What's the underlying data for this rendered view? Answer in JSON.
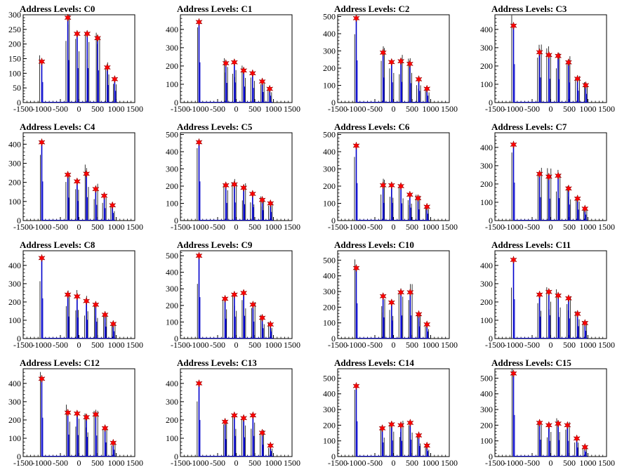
{
  "x_ticks": [
    -1500,
    -1000,
    -500,
    0,
    500,
    1000,
    1500
  ],
  "colors": {
    "hist_main": "#0000cc",
    "hist_secondary": "#000000",
    "marker": "#ff0000",
    "marker_edge": "#800000"
  },
  "chart_data": [
    {
      "type": "bar",
      "title": "Address Levels: C0",
      "xlim": [
        -1500,
        1500
      ],
      "ylim": [
        0,
        300
      ],
      "yticks": [
        0,
        50,
        100,
        150,
        200,
        250,
        300
      ],
      "peaks": [
        {
          "x": -1000,
          "y": 140
        },
        {
          "x": -300,
          "y": 290
        },
        {
          "x": -50,
          "y": 235
        },
        {
          "x": 220,
          "y": 235
        },
        {
          "x": 500,
          "y": 220
        },
        {
          "x": 760,
          "y": 120
        },
        {
          "x": 960,
          "y": 80
        }
      ]
    },
    {
      "type": "bar",
      "title": "Address Levels: C1",
      "xlim": [
        -1500,
        1500
      ],
      "ylim": [
        0,
        480
      ],
      "yticks": [
        0,
        100,
        200,
        300,
        400
      ],
      "peaks": [
        {
          "x": -1000,
          "y": 440
        },
        {
          "x": -280,
          "y": 215
        },
        {
          "x": -50,
          "y": 220
        },
        {
          "x": 200,
          "y": 175
        },
        {
          "x": 440,
          "y": 160
        },
        {
          "x": 700,
          "y": 115
        },
        {
          "x": 900,
          "y": 75
        }
      ]
    },
    {
      "type": "bar",
      "title": "Address Levels: C2",
      "xlim": [
        -1500,
        1500
      ],
      "ylim": [
        0,
        510
      ],
      "yticks": [
        0,
        100,
        200,
        300,
        400,
        500
      ],
      "peaks": [
        {
          "x": -1000,
          "y": 490
        },
        {
          "x": -280,
          "y": 290
        },
        {
          "x": -50,
          "y": 235
        },
        {
          "x": 200,
          "y": 240
        },
        {
          "x": 440,
          "y": 225
        },
        {
          "x": 680,
          "y": 135
        },
        {
          "x": 900,
          "y": 80
        }
      ]
    },
    {
      "type": "bar",
      "title": "Address Levels: C3",
      "xlim": [
        -1500,
        1500
      ],
      "ylim": [
        0,
        480
      ],
      "yticks": [
        0,
        100,
        200,
        300,
        400
      ],
      "peaks": [
        {
          "x": -1000,
          "y": 420
        },
        {
          "x": -300,
          "y": 275
        },
        {
          "x": -50,
          "y": 260
        },
        {
          "x": 200,
          "y": 255
        },
        {
          "x": 480,
          "y": 220
        },
        {
          "x": 720,
          "y": 130
        },
        {
          "x": 940,
          "y": 95
        }
      ]
    },
    {
      "type": "bar",
      "title": "Address Levels: C4",
      "xlim": [
        -1500,
        1500
      ],
      "ylim": [
        0,
        460
      ],
      "yticks": [
        0,
        100,
        200,
        300,
        400
      ],
      "peaks": [
        {
          "x": -1000,
          "y": 410
        },
        {
          "x": -300,
          "y": 240
        },
        {
          "x": -50,
          "y": 205
        },
        {
          "x": 200,
          "y": 245
        },
        {
          "x": 450,
          "y": 165
        },
        {
          "x": 680,
          "y": 130
        },
        {
          "x": 900,
          "y": 80
        }
      ]
    },
    {
      "type": "bar",
      "title": "Address Levels: C5",
      "xlim": [
        -1500,
        1500
      ],
      "ylim": [
        0,
        510
      ],
      "yticks": [
        0,
        100,
        200,
        300,
        400,
        500
      ],
      "peaks": [
        {
          "x": -1000,
          "y": 455
        },
        {
          "x": -280,
          "y": 205
        },
        {
          "x": -50,
          "y": 210
        },
        {
          "x": 200,
          "y": 190
        },
        {
          "x": 440,
          "y": 155
        },
        {
          "x": 700,
          "y": 120
        },
        {
          "x": 920,
          "y": 100
        }
      ]
    },
    {
      "type": "bar",
      "title": "Address Levels: C6",
      "xlim": [
        -1500,
        1500
      ],
      "ylim": [
        0,
        510
      ],
      "yticks": [
        0,
        100,
        200,
        300,
        400,
        500
      ],
      "peaks": [
        {
          "x": -1000,
          "y": 435
        },
        {
          "x": -280,
          "y": 205
        },
        {
          "x": -50,
          "y": 205
        },
        {
          "x": 200,
          "y": 200
        },
        {
          "x": 440,
          "y": 150
        },
        {
          "x": 660,
          "y": 130
        },
        {
          "x": 900,
          "y": 80
        }
      ]
    },
    {
      "type": "bar",
      "title": "Address Levels: C7",
      "xlim": [
        -1500,
        1500
      ],
      "ylim": [
        0,
        480
      ],
      "yticks": [
        0,
        100,
        200,
        300,
        400
      ],
      "peaks": [
        {
          "x": -1000,
          "y": 415
        },
        {
          "x": -300,
          "y": 255
        },
        {
          "x": -50,
          "y": 240
        },
        {
          "x": 200,
          "y": 245
        },
        {
          "x": 480,
          "y": 175
        },
        {
          "x": 720,
          "y": 120
        },
        {
          "x": 920,
          "y": 65
        }
      ]
    },
    {
      "type": "bar",
      "title": "Address Levels: C8",
      "xlim": [
        -1500,
        1500
      ],
      "ylim": [
        0,
        480
      ],
      "yticks": [
        0,
        100,
        200,
        300,
        400
      ],
      "peaks": [
        {
          "x": -1000,
          "y": 440
        },
        {
          "x": -300,
          "y": 240
        },
        {
          "x": -50,
          "y": 230
        },
        {
          "x": 200,
          "y": 205
        },
        {
          "x": 450,
          "y": 185
        },
        {
          "x": 700,
          "y": 130
        },
        {
          "x": 920,
          "y": 80
        }
      ]
    },
    {
      "type": "bar",
      "title": "Address Levels: C9",
      "xlim": [
        -1500,
        1500
      ],
      "ylim": [
        0,
        530
      ],
      "yticks": [
        0,
        100,
        200,
        300,
        400,
        500
      ],
      "peaks": [
        {
          "x": -1000,
          "y": 500
        },
        {
          "x": -300,
          "y": 240
        },
        {
          "x": -50,
          "y": 265
        },
        {
          "x": 200,
          "y": 275
        },
        {
          "x": 450,
          "y": 205
        },
        {
          "x": 700,
          "y": 125
        },
        {
          "x": 920,
          "y": 85
        }
      ]
    },
    {
      "type": "bar",
      "title": "Address Levels: C10",
      "xlim": [
        -1500,
        1500
      ],
      "ylim": [
        0,
        560
      ],
      "yticks": [
        0,
        100,
        200,
        300,
        400,
        500
      ],
      "peaks": [
        {
          "x": -1000,
          "y": 450
        },
        {
          "x": -280,
          "y": 270
        },
        {
          "x": -50,
          "y": 230
        },
        {
          "x": 200,
          "y": 295
        },
        {
          "x": 450,
          "y": 295
        },
        {
          "x": 680,
          "y": 155
        },
        {
          "x": 900,
          "y": 90
        }
      ]
    },
    {
      "type": "bar",
      "title": "Address Levels: C11",
      "xlim": [
        -1500,
        1500
      ],
      "ylim": [
        0,
        480
      ],
      "yticks": [
        0,
        100,
        200,
        300,
        400
      ],
      "peaks": [
        {
          "x": -1000,
          "y": 430
        },
        {
          "x": -300,
          "y": 240
        },
        {
          "x": -50,
          "y": 255
        },
        {
          "x": 200,
          "y": 235
        },
        {
          "x": 480,
          "y": 220
        },
        {
          "x": 720,
          "y": 135
        },
        {
          "x": 920,
          "y": 85
        }
      ]
    },
    {
      "type": "bar",
      "title": "Address Levels: C12",
      "xlim": [
        -1500,
        1500
      ],
      "ylim": [
        0,
        480
      ],
      "yticks": [
        0,
        100,
        200,
        300,
        400
      ],
      "peaks": [
        {
          "x": -1000,
          "y": 425
        },
        {
          "x": -300,
          "y": 240
        },
        {
          "x": -50,
          "y": 235
        },
        {
          "x": 200,
          "y": 215
        },
        {
          "x": 450,
          "y": 230
        },
        {
          "x": 700,
          "y": 155
        },
        {
          "x": 920,
          "y": 75
        }
      ]
    },
    {
      "type": "bar",
      "title": "Address Levels: C13",
      "xlim": [
        -1500,
        1500
      ],
      "ylim": [
        0,
        480
      ],
      "yticks": [
        0,
        100,
        200,
        300,
        400
      ],
      "peaks": [
        {
          "x": -1000,
          "y": 400
        },
        {
          "x": -300,
          "y": 190
        },
        {
          "x": -50,
          "y": 225
        },
        {
          "x": 200,
          "y": 210
        },
        {
          "x": 450,
          "y": 225
        },
        {
          "x": 700,
          "y": 130
        },
        {
          "x": 920,
          "y": 60
        }
      ]
    },
    {
      "type": "bar",
      "title": "Address Levels: C14",
      "xlim": [
        -1500,
        1500
      ],
      "ylim": [
        0,
        560
      ],
      "yticks": [
        0,
        100,
        200,
        300,
        400,
        500
      ],
      "peaks": [
        {
          "x": -1000,
          "y": 450
        },
        {
          "x": -300,
          "y": 180
        },
        {
          "x": -50,
          "y": 205
        },
        {
          "x": 200,
          "y": 200
        },
        {
          "x": 450,
          "y": 215
        },
        {
          "x": 680,
          "y": 135
        },
        {
          "x": 900,
          "y": 70
        }
      ]
    },
    {
      "type": "bar",
      "title": "Address Levels: C15",
      "xlim": [
        -1500,
        1500
      ],
      "ylim": [
        0,
        560
      ],
      "yticks": [
        0,
        100,
        200,
        300,
        400,
        500
      ],
      "peaks": [
        {
          "x": -1000,
          "y": 530
        },
        {
          "x": -300,
          "y": 215
        },
        {
          "x": -50,
          "y": 200
        },
        {
          "x": 200,
          "y": 210
        },
        {
          "x": 450,
          "y": 200
        },
        {
          "x": 700,
          "y": 115
        },
        {
          "x": 920,
          "y": 60
        }
      ]
    }
  ]
}
